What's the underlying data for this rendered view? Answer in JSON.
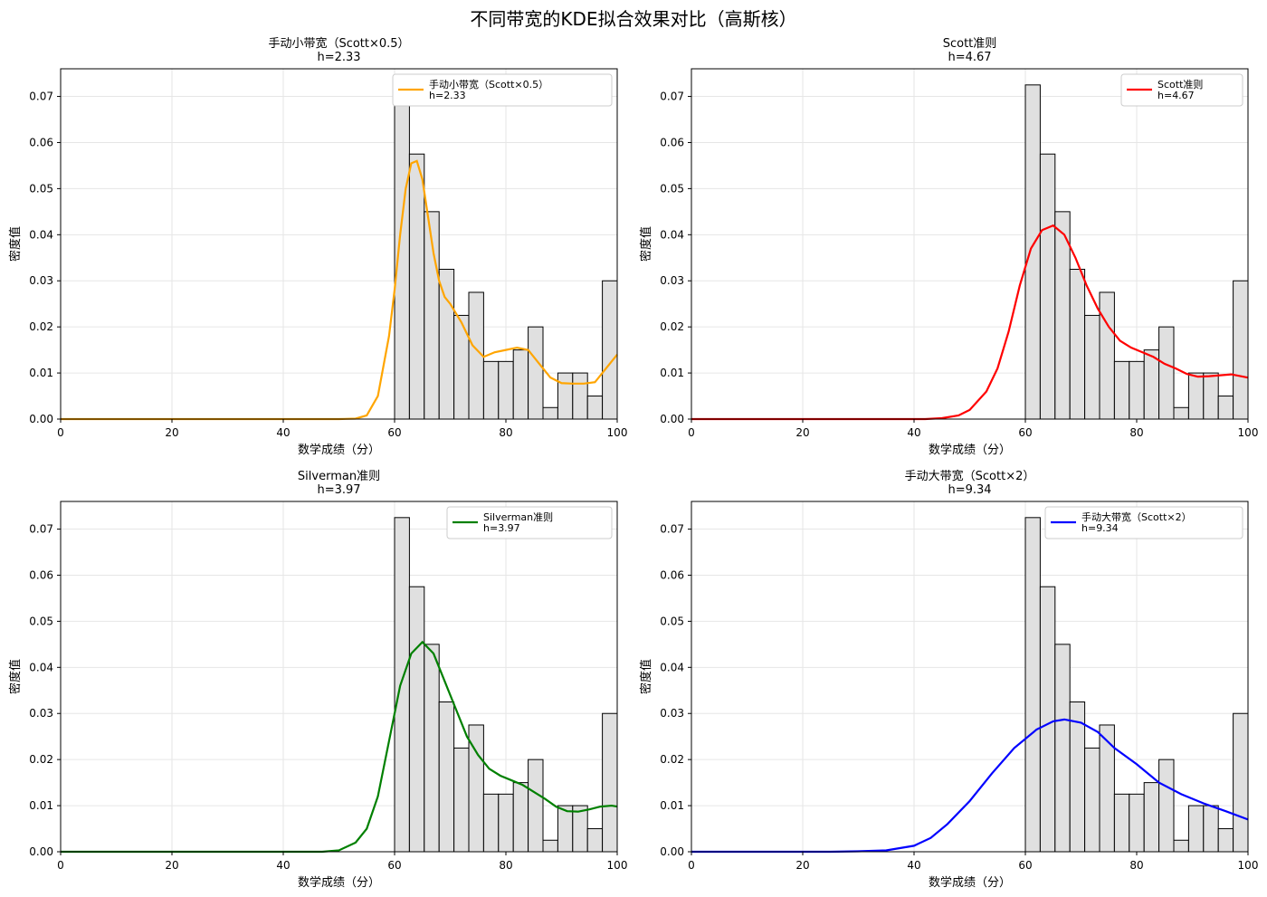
{
  "chart_data": {
    "title": "不同带宽的KDE拟合效果对比（高斯核）",
    "hist": {
      "bin_edges_range": [
        60,
        100
      ],
      "bins": 15,
      "densities": [
        0.0725,
        0.0575,
        0.045,
        0.0325,
        0.0225,
        0.0275,
        0.0125,
        0.0125,
        0.015,
        0.02,
        0.0025,
        0.01,
        0.01,
        0.005,
        0.03
      ],
      "color": "#e0e0e0",
      "edge": "#000000"
    },
    "xlim": [
      0,
      100
    ],
    "ylim": [
      0,
      0.076
    ],
    "xticks": [
      0,
      20,
      40,
      60,
      80,
      100
    ],
    "yticks": [
      "0.00",
      "0.01",
      "0.02",
      "0.03",
      "0.04",
      "0.05",
      "0.06",
      "0.07"
    ],
    "grid": true,
    "legend_placement": "upper-right",
    "subplots": [
      {
        "type": "line",
        "title": "手动小带宽（Scott×0.5）",
        "subtitle": "h=2.33",
        "legend": [
          "手动小带宽（Scott×0.5）",
          "h=2.33"
        ],
        "xlabel": "数学成绩（分）",
        "ylabel": "密度值",
        "color": "#ffa500",
        "x": [
          0,
          50,
          53,
          55,
          57,
          59,
          60,
          61,
          62,
          63,
          64,
          65,
          66,
          67,
          68,
          69,
          70,
          72,
          74,
          76,
          78,
          80,
          82,
          84,
          86,
          88,
          90,
          92,
          94,
          96,
          98,
          100
        ],
        "y": [
          0,
          0,
          0.0001,
          0.0008,
          0.005,
          0.018,
          0.028,
          0.04,
          0.05,
          0.0555,
          0.056,
          0.052,
          0.044,
          0.036,
          0.03,
          0.0265,
          0.025,
          0.021,
          0.016,
          0.0135,
          0.0145,
          0.015,
          0.0155,
          0.015,
          0.012,
          0.009,
          0.0078,
          0.0077,
          0.0077,
          0.008,
          0.011,
          0.014
        ]
      },
      {
        "type": "line",
        "title": "Scott准则",
        "subtitle": "h=4.67",
        "legend": [
          "Scott准则",
          "h=4.67"
        ],
        "xlabel": "数学成绩（分）",
        "ylabel": "密度值",
        "color": "#ff0000",
        "x": [
          0,
          42,
          45,
          48,
          50,
          53,
          55,
          57,
          59,
          61,
          63,
          65,
          67,
          69,
          71,
          73,
          75,
          77,
          79,
          81,
          83,
          85,
          87,
          89,
          91,
          93,
          95,
          97,
          100
        ],
        "y": [
          0,
          0,
          0.0002,
          0.0008,
          0.002,
          0.006,
          0.011,
          0.019,
          0.029,
          0.037,
          0.041,
          0.042,
          0.04,
          0.035,
          0.029,
          0.024,
          0.02,
          0.017,
          0.0155,
          0.0145,
          0.0135,
          0.012,
          0.011,
          0.0098,
          0.0092,
          0.0093,
          0.0095,
          0.0097,
          0.009
        ]
      },
      {
        "type": "line",
        "title": "Silverman准则",
        "subtitle": "h=3.97",
        "legend": [
          "Silverman准则",
          "h=3.97"
        ],
        "xlabel": "数学成绩（分）",
        "ylabel": "密度值",
        "color": "#008000",
        "x": [
          0,
          47,
          50,
          53,
          55,
          57,
          59,
          61,
          63,
          65,
          67,
          69,
          71,
          73,
          75,
          77,
          79,
          81,
          83,
          85,
          87,
          89,
          91,
          93,
          95,
          97,
          99,
          100
        ],
        "y": [
          0,
          0,
          0.0003,
          0.002,
          0.005,
          0.012,
          0.024,
          0.036,
          0.043,
          0.0455,
          0.043,
          0.037,
          0.031,
          0.025,
          0.021,
          0.018,
          0.0165,
          0.0155,
          0.0145,
          0.013,
          0.0115,
          0.0098,
          0.0088,
          0.0087,
          0.0092,
          0.0098,
          0.01,
          0.0098
        ]
      },
      {
        "type": "line",
        "title": "手动大带宽（Scott×2）",
        "subtitle": "h=9.34",
        "legend": [
          "手动大带宽（Scott×2）",
          "h=9.34"
        ],
        "xlabel": "数学成绩（分）",
        "ylabel": "密度值",
        "color": "#0000ff",
        "x": [
          0,
          25,
          30,
          35,
          40,
          43,
          46,
          50,
          54,
          58,
          62,
          65,
          67,
          70,
          73,
          76,
          80,
          84,
          88,
          92,
          96,
          100
        ],
        "y": [
          0,
          0,
          0.0001,
          0.0003,
          0.0013,
          0.003,
          0.006,
          0.011,
          0.017,
          0.0225,
          0.0265,
          0.0283,
          0.0287,
          0.028,
          0.026,
          0.0225,
          0.019,
          0.015,
          0.0125,
          0.0105,
          0.0088,
          0.007
        ]
      }
    ]
  }
}
